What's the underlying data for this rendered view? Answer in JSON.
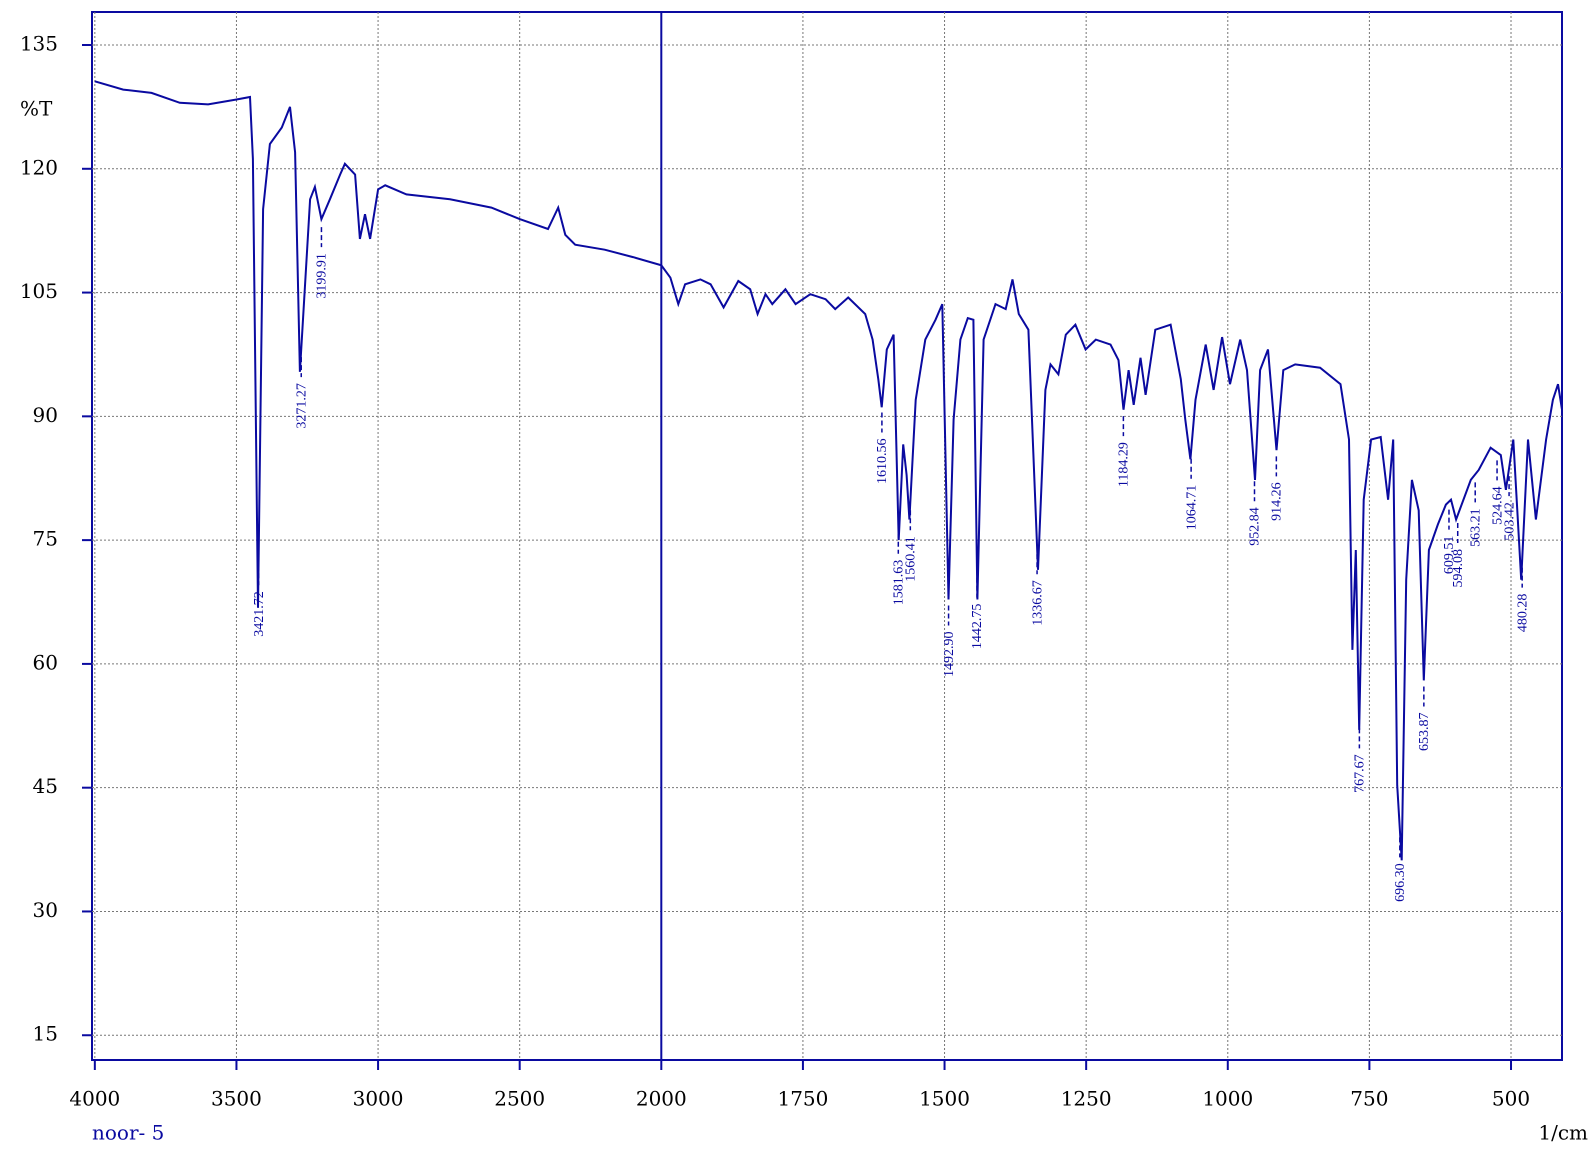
{
  "chart_data": {
    "type": "line",
    "color": "#0a0aa0",
    "xlim": [
      4010,
      410
    ],
    "x_break": 2000,
    "x_break_ratio": 2,
    "ylim": [
      12,
      139
    ],
    "xticks": [
      4000,
      3500,
      3000,
      2500,
      2000,
      1750,
      1500,
      1250,
      1000,
      750,
      500
    ],
    "yticks": [
      15,
      30,
      45,
      60,
      75,
      90,
      105,
      120,
      135
    ],
    "grid": true,
    "ylabel": "%T",
    "xlabel": "1/cm",
    "caption": "noor- 5",
    "x": [
      4000,
      3900,
      3800,
      3700,
      3600,
      3500,
      3452,
      3442,
      3424,
      3406,
      3382,
      3340,
      3311,
      3293,
      3276,
      3240,
      3223,
      3200,
      3170,
      3134,
      3117,
      3081,
      3064,
      3046,
      3028,
      3000,
      2975,
      2900,
      2746,
      2600,
      2500,
      2400,
      2364,
      2339,
      2304,
      2200,
      2100,
      2000,
      1984,
      1970,
      1958,
      1931,
      1913,
      1890,
      1864,
      1843,
      1830,
      1816,
      1804,
      1781,
      1763,
      1737,
      1710,
      1693,
      1670,
      1640,
      1627,
      1617,
      1611,
      1602,
      1590,
      1581,
      1573,
      1567,
      1562,
      1551,
      1534,
      1516,
      1504,
      1493,
      1484,
      1472,
      1459,
      1449,
      1442,
      1431,
      1410,
      1392,
      1380,
      1369,
      1352,
      1335,
      1322,
      1313,
      1299,
      1286,
      1269,
      1251,
      1233,
      1207,
      1193,
      1184,
      1175,
      1166,
      1154,
      1145,
      1128,
      1101,
      1083,
      1075,
      1066,
      1057,
      1039,
      1025,
      1010,
      996,
      978,
      966,
      952,
      943,
      929,
      914,
      902,
      881,
      837,
      801,
      786,
      780,
      774,
      768,
      760,
      747,
      730,
      717,
      708,
      701,
      693,
      685,
      675,
      663,
      654,
      645,
      629,
      615,
      606,
      597,
      571,
      557,
      536,
      518,
      509,
      496,
      482,
      470,
      456,
      438,
      426,
      417,
      410
    ],
    "values": [
      130.6,
      129.6,
      129.2,
      128.0,
      127.8,
      128.4,
      128.7,
      121.2,
      66.8,
      115.1,
      123.0,
      125.0,
      127.5,
      122.0,
      95.4,
      116.3,
      117.8,
      113.9,
      116.3,
      119.3,
      120.6,
      119.3,
      111.5,
      114.5,
      111.5,
      117.5,
      118.0,
      116.9,
      116.3,
      115.3,
      113.9,
      112.7,
      115.3,
      112.0,
      110.8,
      110.2,
      109.3,
      108.3,
      106.8,
      103.6,
      106.0,
      106.6,
      106.0,
      103.2,
      106.4,
      105.4,
      102.4,
      104.8,
      103.6,
      105.4,
      103.6,
      104.8,
      104.2,
      103.0,
      104.4,
      102.4,
      99.3,
      94.5,
      91.1,
      98.1,
      99.9,
      75.0,
      86.6,
      82.9,
      77.5,
      92.0,
      99.3,
      101.7,
      103.6,
      67.8,
      89.6,
      99.3,
      101.9,
      101.7,
      67.8,
      99.3,
      103.6,
      103.0,
      106.6,
      102.4,
      100.5,
      71.4,
      93.2,
      96.3,
      95.1,
      99.9,
      101.1,
      98.1,
      99.3,
      98.7,
      96.8,
      90.8,
      95.6,
      91.4,
      97.1,
      92.6,
      100.5,
      101.1,
      94.5,
      89.6,
      84.8,
      92.0,
      98.7,
      93.2,
      99.6,
      93.9,
      99.3,
      95.6,
      82.3,
      95.6,
      98.1,
      85.9,
      95.6,
      96.3,
      95.9,
      93.9,
      87.2,
      61.7,
      73.8,
      52.0,
      79.9,
      87.2,
      87.5,
      79.9,
      87.2,
      45.3,
      36.2,
      70.2,
      82.3,
      78.6,
      58.0,
      73.8,
      76.9,
      79.3,
      79.9,
      77.5,
      82.3,
      83.5,
      86.2,
      85.3,
      81.1,
      87.2,
      70.2,
      87.2,
      77.5,
      87.2,
      92.0,
      93.9,
      90.8
    ],
    "peaks": [
      3421.72,
      3271.27,
      3199.91,
      1610.56,
      1581.63,
      1560.41,
      {
        "value": 1492.9,
        "label": "1492.90"
      },
      1442.75,
      1336.67,
      1184.29,
      1064.71,
      952.84,
      914.26,
      767.67,
      {
        "value": 696.3,
        "label": "696.30"
      },
      653.87,
      609.51,
      594.08,
      563.21,
      524.64,
      503.42,
      480.28
    ]
  }
}
